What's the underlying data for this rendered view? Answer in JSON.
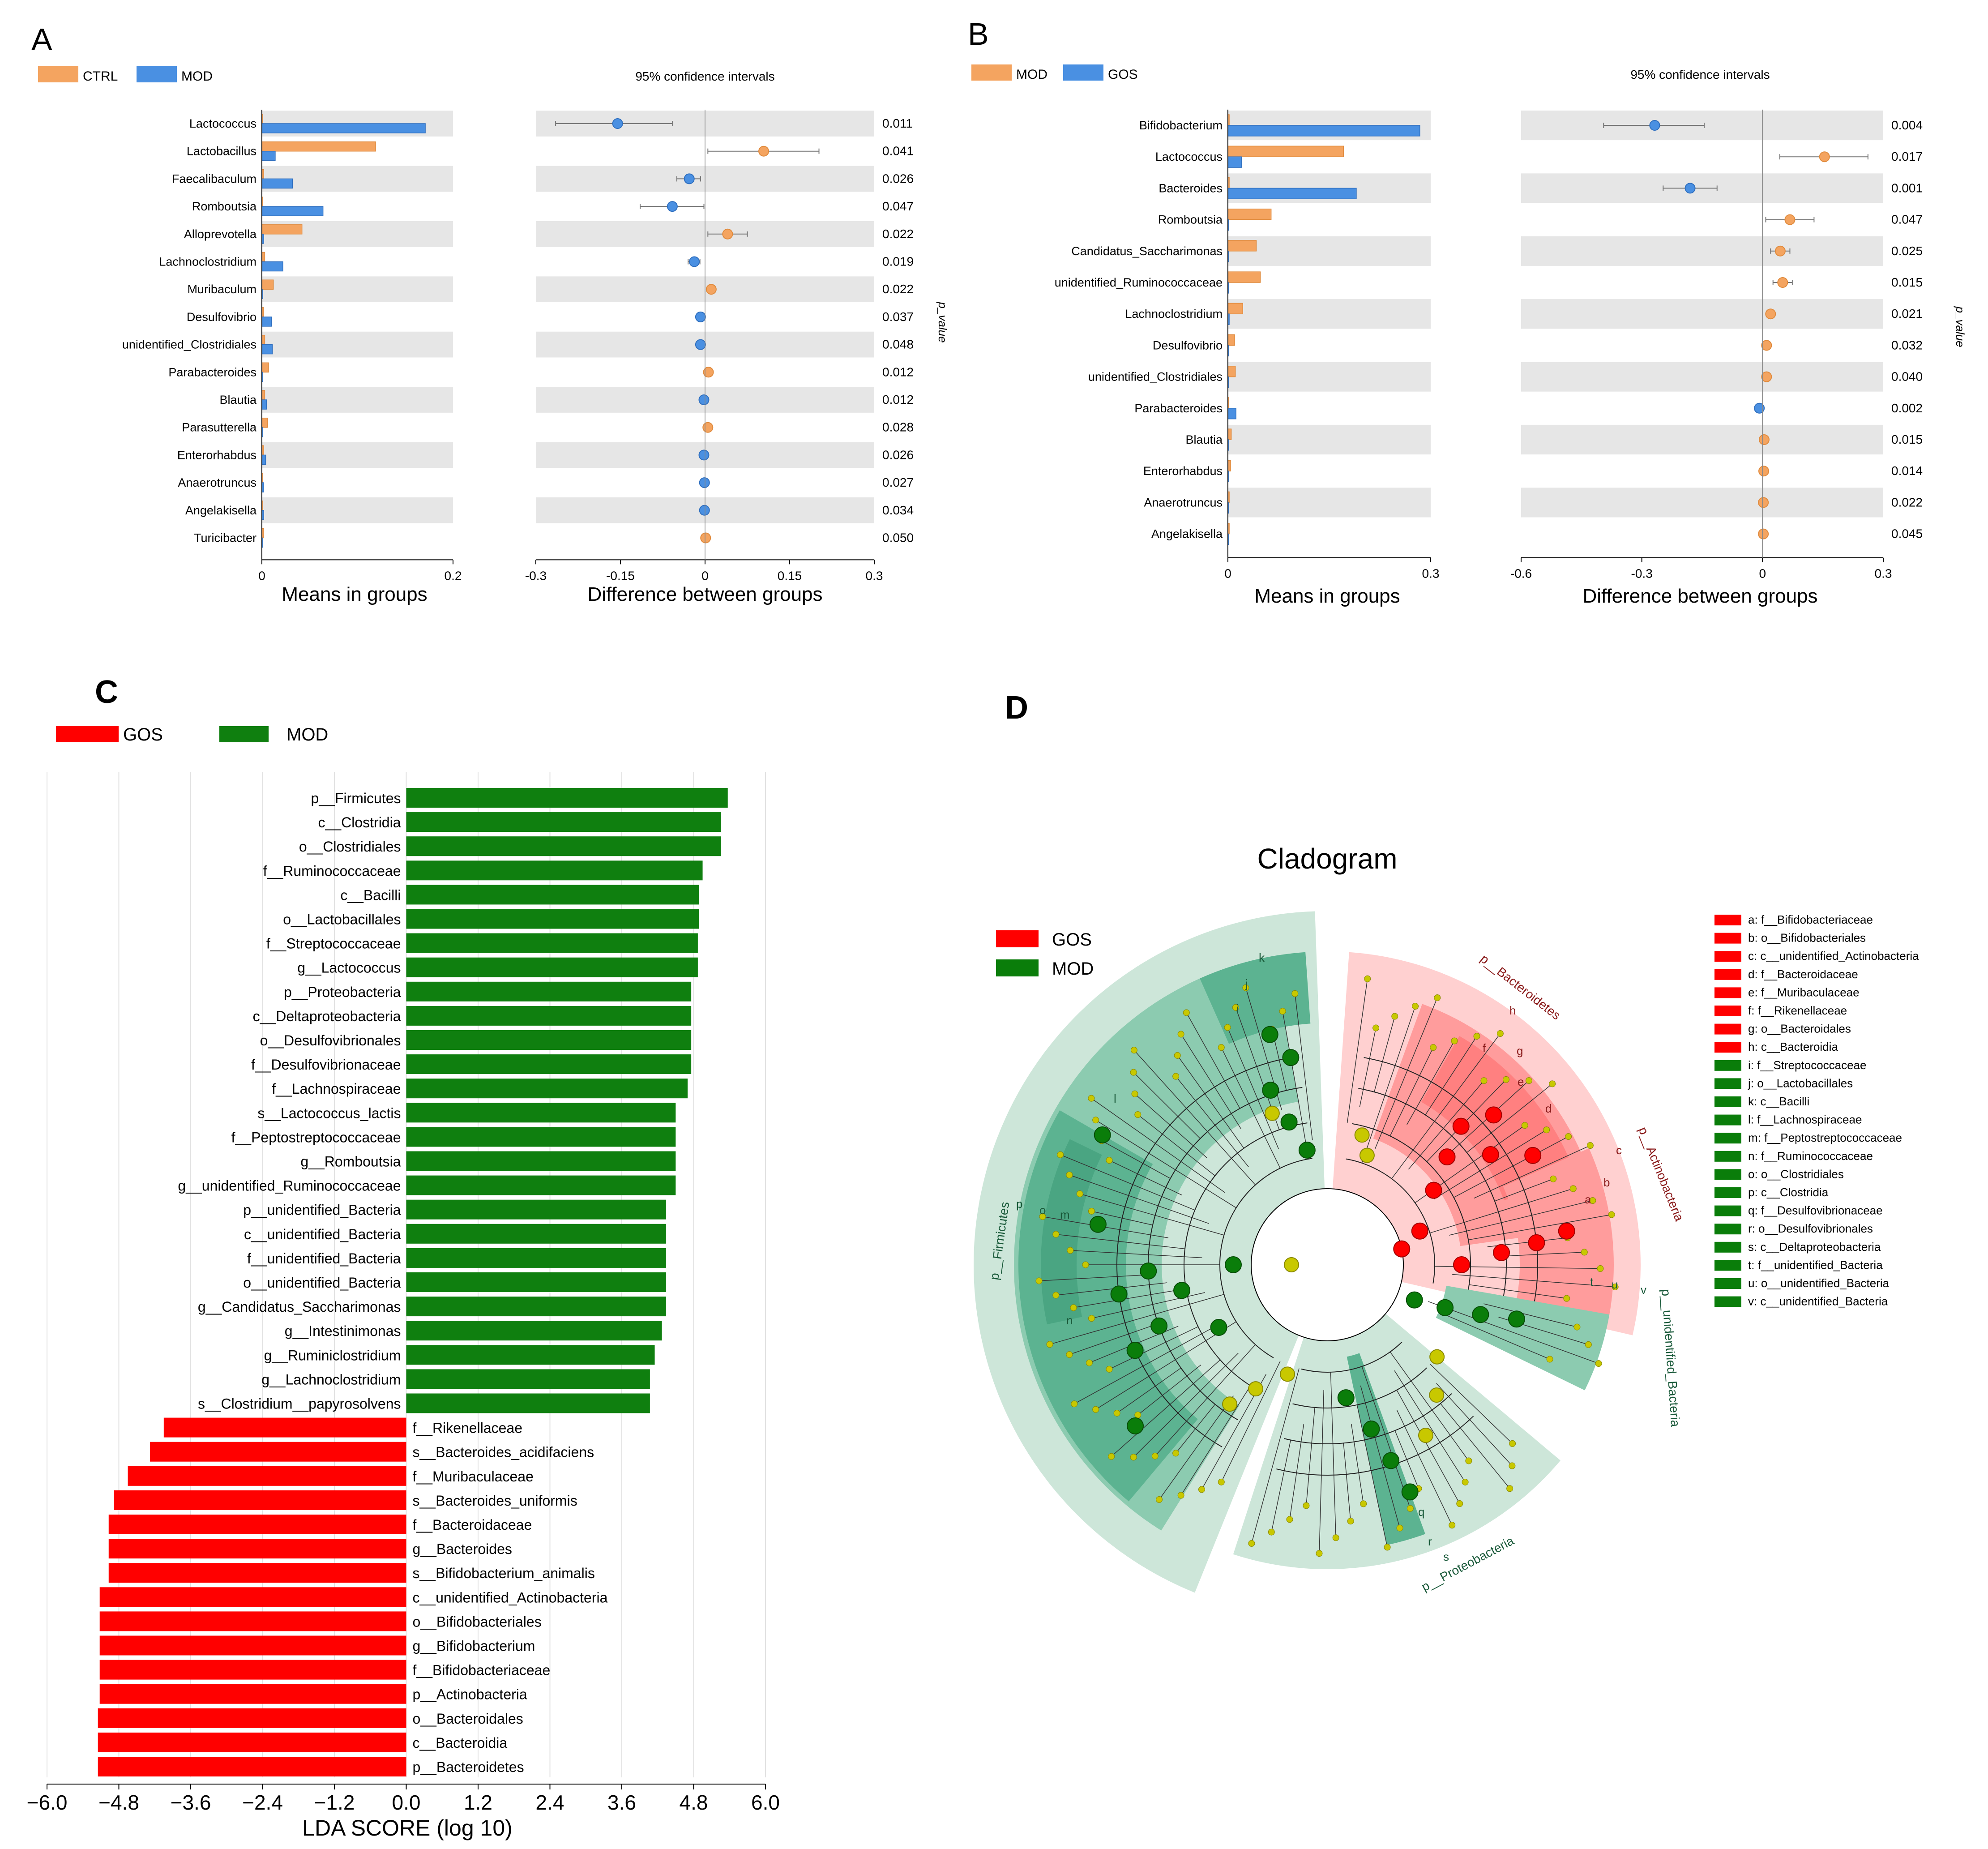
{
  "colors": {
    "orange": "#f4a460",
    "orange_edge": "#e08a3c",
    "blue": "#4a90e2",
    "blue_edge": "#2f6fbf",
    "band": "#e6e6e6",
    "lda_red": "#ff0000",
    "lda_green": "#0f7f0f",
    "clado_green_light": "#cde6d9",
    "clado_green_mid": "#8ccbb0",
    "clado_green_dark": "#5cb391",
    "clado_red_light": "#ffd0d0",
    "clado_red_mid": "#ff9c9c",
    "node_yellow": "#c8c800",
    "node_red": "#ff0000",
    "node_green": "#0a7d0a"
  },
  "chart_data": [
    {
      "type": "bar",
      "panel": "A",
      "legend": [
        "CTRL",
        "MOD"
      ],
      "categories": [
        "Lactococcus",
        "Lactobacillus",
        "Faecalibaculum",
        "Romboutsia",
        "Alloprevotella",
        "Lachnoclostridium",
        "Muribaculum",
        "Desulfovibrio",
        "unidentified_Clostridiales",
        "Parabacteroides",
        "Blautia",
        "Parasutterella",
        "Enterorhabdus",
        "Anaerotruncus",
        "Angelakisella",
        "Turicibacter"
      ],
      "series": [
        {
          "name": "CTRL",
          "values": [
            0.001,
            0.119,
            0.002,
            0.001,
            0.042,
            0.003,
            0.012,
            0.002,
            0.003,
            0.007,
            0.003,
            0.006,
            0.002,
            0.001,
            0.001,
            0.002
          ]
        },
        {
          "name": "MOD",
          "values": [
            0.171,
            0.014,
            0.032,
            0.064,
            0.002,
            0.022,
            0.001,
            0.01,
            0.011,
            0.001,
            0.005,
            0.001,
            0.004,
            0.002,
            0.002,
            0.001
          ]
        }
      ],
      "xlabel": "Means in groups",
      "xlim": [
        0,
        0.2
      ],
      "xticks": [
        "0",
        "0.2"
      ]
    },
    {
      "type": "scatter",
      "panel": "A",
      "title": "95% confidence intervals",
      "categories": [
        "Lactococcus",
        "Lactobacillus",
        "Faecalibaculum",
        "Romboutsia",
        "Alloprevotella",
        "Lachnoclostridium",
        "Muribaculum",
        "Desulfovibrio",
        "unidentified_Clostridiales",
        "Parabacteroides",
        "Blautia",
        "Parasutterella",
        "Enterorhabdus",
        "Anaerotruncus",
        "Angelakisella",
        "Turicibacter"
      ],
      "diff": [
        -0.155,
        0.104,
        -0.028,
        -0.058,
        0.04,
        -0.019,
        0.011,
        -0.008,
        -0.008,
        0.006,
        -0.002,
        0.005,
        -0.002,
        -0.001,
        -0.001,
        0.001
      ],
      "ci_low": [
        -0.265,
        0.005,
        -0.05,
        -0.115,
        0.005,
        -0.03,
        0.007,
        -0.014,
        -0.016,
        0.003,
        -0.006,
        0.002,
        -0.005,
        -0.003,
        -0.003,
        -0.001
      ],
      "ci_high": [
        -0.058,
        0.202,
        -0.008,
        -0.002,
        0.075,
        -0.009,
        0.016,
        -0.003,
        0.0,
        0.01,
        0.001,
        0.009,
        0.001,
        0.0,
        0.0,
        0.003
      ],
      "p_values": [
        "0.011",
        "0.041",
        "0.026",
        "0.047",
        "0.022",
        "0.019",
        "0.022",
        "0.037",
        "0.048",
        "0.012",
        "0.012",
        "0.028",
        "0.026",
        "0.027",
        "0.034",
        "0.050"
      ],
      "xlabel": "Difference between groups",
      "ylabel": "p_value",
      "xlim": [
        -0.3,
        0.3
      ],
      "xticks": [
        "-0.3",
        "-0.15",
        "0",
        "0.15",
        "0.3"
      ]
    },
    {
      "type": "bar",
      "panel": "B",
      "legend": [
        "MOD",
        "GOS"
      ],
      "categories": [
        "Bifidobacterium",
        "Lactococcus",
        "Bacteroides",
        "Romboutsia",
        "Candidatus_Saccharimonas",
        "unidentified_Ruminococcaceae",
        "Lachnoclostridium",
        "Desulfovibrio",
        "unidentified_Clostridiales",
        "Parabacteroides",
        "Blautia",
        "Enterorhabdus",
        "Anaerotruncus",
        "Angelakisella"
      ],
      "series": [
        {
          "name": "MOD",
          "values": [
            0.002,
            0.171,
            0.002,
            0.064,
            0.042,
            0.048,
            0.022,
            0.01,
            0.011,
            0.001,
            0.005,
            0.004,
            0.002,
            0.002
          ]
        },
        {
          "name": "GOS",
          "values": [
            0.284,
            0.02,
            0.19,
            0.001,
            0.001,
            0.001,
            0.002,
            0.001,
            0.001,
            0.012,
            0.001,
            0.001,
            0.001,
            0.001
          ]
        }
      ],
      "xlabel": "Means in groups",
      "xlim": [
        0,
        0.3
      ],
      "xticks": [
        "0",
        "0.3"
      ]
    },
    {
      "type": "scatter",
      "panel": "B",
      "title": "95% confidence intervals",
      "categories": [
        "Bifidobacterium",
        "Lactococcus",
        "Bacteroides",
        "Romboutsia",
        "Candidatus_Saccharimonas",
        "unidentified_Ruminococcaceae",
        "Lachnoclostridium",
        "Desulfovibrio",
        "unidentified_Clostridiales",
        "Parabacteroides",
        "Blautia",
        "Enterorhabdus",
        "Anaerotruncus",
        "Angelakisella"
      ],
      "diff": [
        -0.268,
        0.154,
        -0.18,
        0.068,
        0.044,
        0.05,
        0.02,
        0.01,
        0.01,
        -0.008,
        0.004,
        0.003,
        0.002,
        0.002
      ],
      "ci_low": [
        -0.395,
        0.043,
        -0.247,
        0.008,
        0.02,
        0.026,
        0.01,
        0.005,
        0.005,
        -0.014,
        0.001,
        0.001,
        0.0,
        0.0
      ],
      "ci_high": [
        -0.145,
        0.262,
        -0.113,
        0.128,
        0.068,
        0.074,
        0.03,
        0.015,
        0.015,
        -0.002,
        0.007,
        0.005,
        0.004,
        0.004
      ],
      "p_values": [
        "0.004",
        "0.017",
        "0.001",
        "0.047",
        "0.025",
        "0.015",
        "0.021",
        "0.032",
        "0.040",
        "0.002",
        "0.015",
        "0.014",
        "0.022",
        "0.045"
      ],
      "xlabel": "Difference between groups",
      "ylabel": "p_value",
      "xlim": [
        -0.6,
        0.3
      ],
      "xticks": [
        "-0.6",
        "-0.3",
        "0",
        "0.3"
      ]
    },
    {
      "type": "bar",
      "panel": "C",
      "orientation": "horizontal",
      "legend": [
        "GOS",
        "MOD"
      ],
      "categories": [
        "p__Firmicutes",
        "c__Clostridia",
        "o__Clostridiales",
        "f__Ruminococcaceae",
        "c__Bacilli",
        "o__Lactobacillales",
        "f__Streptococcaceae",
        "g__Lactococcus",
        "p__Proteobacteria",
        "c__Deltaproteobacteria",
        "o__Desulfovibrionales",
        "f__Desulfovibrionaceae",
        "f__Lachnospiraceae",
        "s__Lactococcus_lactis",
        "f__Peptostreptococcaceae",
        "g__Romboutsia",
        "g__unidentified_Ruminococcaceae",
        "p__unidentified_Bacteria",
        "c__unidentified_Bacteria",
        "f__unidentified_Bacteria",
        "o__unidentified_Bacteria",
        "g__Candidatus_Saccharimonas",
        "g__Intestinimonas",
        "g__Ruminiclostridium",
        "g__Lachnoclostridium",
        "s__Clostridium__papyrosolvens",
        "f__Rikenellaceae",
        "s__Bacteroides_acidifaciens",
        "f__Muribaculaceae",
        "s__Bacteroides_uniformis",
        "f__Bacteroidaceae",
        "g__Bacteroides",
        "s__Bifidobacterium_animalis",
        "c__unidentified_Actinobacteria",
        "o__Bifidobacteriales",
        "g__Bifidobacterium",
        "f__Bifidobacteriaceae",
        "p__Actinobacteria",
        "o__Bacteroidales",
        "c__Bacteroidia",
        "p__Bacteroidetes"
      ],
      "values": [
        5.37,
        5.26,
        5.26,
        4.95,
        4.89,
        4.89,
        4.87,
        4.87,
        4.76,
        4.76,
        4.76,
        4.76,
        4.7,
        4.5,
        4.5,
        4.5,
        4.5,
        4.34,
        4.34,
        4.34,
        4.34,
        4.34,
        4.27,
        4.15,
        4.07,
        4.07,
        -4.05,
        -4.28,
        -4.65,
        -4.88,
        -4.97,
        -4.97,
        -4.97,
        -5.12,
        -5.12,
        -5.12,
        -5.12,
        -5.12,
        -5.15,
        -5.15,
        -5.15
      ],
      "groups": [
        "MOD",
        "MOD",
        "MOD",
        "MOD",
        "MOD",
        "MOD",
        "MOD",
        "MOD",
        "MOD",
        "MOD",
        "MOD",
        "MOD",
        "MOD",
        "MOD",
        "MOD",
        "MOD",
        "MOD",
        "MOD",
        "MOD",
        "MOD",
        "MOD",
        "MOD",
        "MOD",
        "MOD",
        "MOD",
        "MOD",
        "GOS",
        "GOS",
        "GOS",
        "GOS",
        "GOS",
        "GOS",
        "GOS",
        "GOS",
        "GOS",
        "GOS",
        "GOS",
        "GOS",
        "GOS",
        "GOS",
        "GOS"
      ],
      "xlabel": "LDA SCORE (log 10)",
      "xlim": [
        -6.0,
        6.0
      ],
      "xticks": [
        "−6.0",
        "−4.8",
        "−3.6",
        "−2.4",
        "−1.2",
        "0.0",
        "1.2",
        "2.4",
        "3.6",
        "4.8",
        "6.0"
      ]
    }
  ],
  "panels": {
    "a": {
      "label": "A"
    },
    "b": {
      "label": "B"
    },
    "c": {
      "label": "C"
    },
    "d": {
      "label": "D"
    }
  },
  "cladogram": {
    "title": "Cladogram",
    "legend": [
      "GOS",
      "MOD"
    ],
    "key_groups": [
      "GOS",
      "GOS",
      "GOS",
      "GOS",
      "GOS",
      "GOS",
      "GOS",
      "GOS",
      "MOD",
      "MOD",
      "MOD",
      "MOD",
      "MOD",
      "MOD",
      "MOD",
      "MOD",
      "MOD",
      "MOD",
      "MOD",
      "MOD",
      "MOD",
      "MOD"
    ],
    "key": [
      "a: f__Bifidobacteriaceae",
      "b: o__Bifidobacteriales",
      "c: c__unidentified_Actinobacteria",
      "d: f__Bacteroidaceae",
      "e: f__Muribaculaceae",
      "f: f__Rikenellaceae",
      "g: o__Bacteroidales",
      "h: c__Bacteroidia",
      "i: f__Streptococcaceae",
      "j: o__Lactobacillales",
      "k: c__Bacilli",
      "l: f__Lachnospiraceae",
      "m: f__Peptostreptococcaceae",
      "n: f__Ruminococcaceae",
      "o: o__Clostridiales",
      "p: c__Clostridia",
      "q: f__Desulfovibrionaceae",
      "r: o__Desulfovibrionales",
      "s: c__Deltaproteobacteria",
      "t: f__unidentified_Bacteria",
      "u: o__unidentified_Bacteria",
      "v: c__unidentified_Bacteria"
    ],
    "phylum_labels": {
      "bacteroidetes": "p__Bacteroidetes",
      "actinobacteria": "p__Actinobacteria",
      "unidentified": "p__unidentified_Bacteria",
      "proteobacteria": "p__Proteobacteria",
      "firmicutes": "p__Firmicutes"
    },
    "clade_letters": {
      "k": "k",
      "j": "j",
      "i": "i",
      "l": "l",
      "p": "p",
      "o": "o",
      "m": "m",
      "n": "n",
      "h": "h",
      "g": "g",
      "f": "f",
      "e": "e",
      "d": "d",
      "c": "c",
      "b": "b",
      "a": "a",
      "t": "t",
      "u": "u",
      "v": "v",
      "q": "q",
      "r": "r",
      "s": "s"
    }
  }
}
